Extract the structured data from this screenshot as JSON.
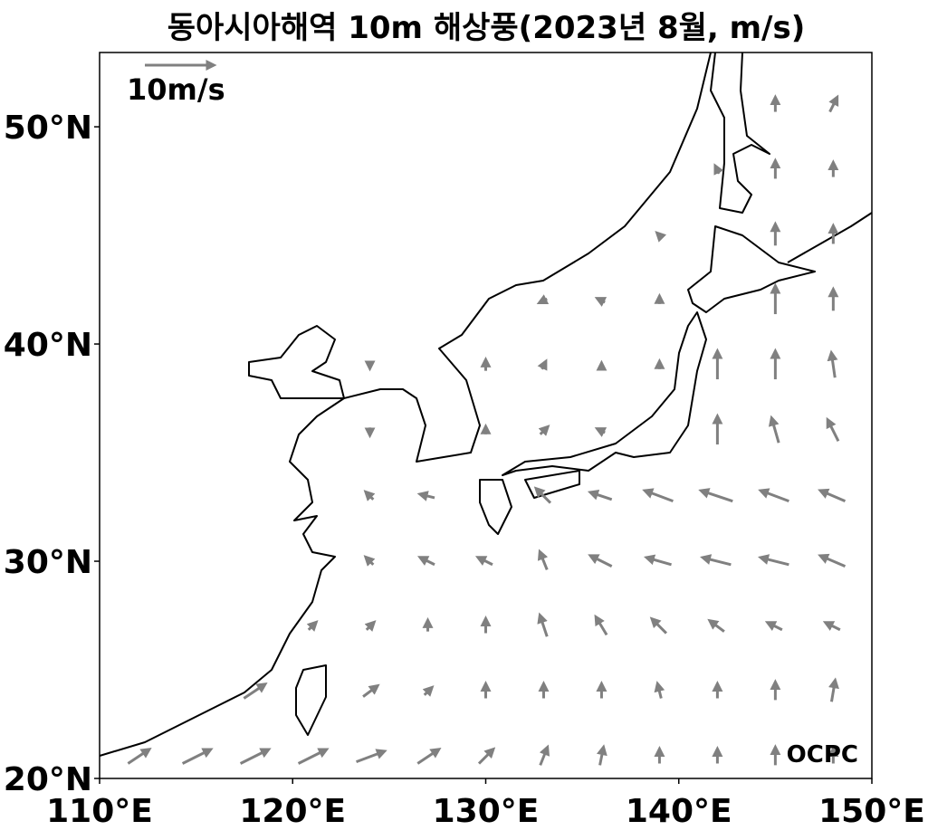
{
  "title": "동아시아해역 10m 해상풍(2023년 8월, m/s)",
  "map": {
    "xlim": [
      110,
      150
    ],
    "ylim": [
      20,
      53.42
    ],
    "xticks": [
      {
        "value": 110,
        "label": "110°E"
      },
      {
        "value": 120,
        "label": "120°E"
      },
      {
        "value": 130,
        "label": "130°E"
      },
      {
        "value": 140,
        "label": "140°E"
      },
      {
        "value": 150,
        "label": "150°E"
      }
    ],
    "yticks": [
      {
        "value": 20,
        "label": "20°N"
      },
      {
        "value": 30,
        "label": "30°N"
      },
      {
        "value": 40,
        "label": "40°N"
      },
      {
        "value": 50,
        "label": "50°N"
      }
    ],
    "arrow_color": "#808080"
  },
  "reference_arrow": {
    "value": 10,
    "label": "10m/s"
  },
  "credit": "OCPC",
  "wind": {
    "lons": [
      112,
      115,
      118,
      121,
      124,
      127,
      130,
      133,
      136,
      139,
      142,
      145,
      148
    ],
    "lats": [
      21,
      24,
      27,
      30,
      33,
      36,
      39,
      42,
      45,
      48,
      51
    ],
    "u": [
      [
        3,
        4,
        4,
        4,
        4,
        3,
        2,
        1,
        0.5,
        0,
        0,
        0,
        0
      ],
      [
        null,
        null,
        3,
        null,
        2,
        1,
        0,
        0,
        0,
        -0.5,
        0,
        0,
        0.5
      ],
      [
        null,
        null,
        null,
        1,
        1,
        0,
        0,
        -1,
        -1.5,
        -2,
        -2,
        -2,
        -2
      ],
      [
        null,
        null,
        null,
        null,
        -1,
        -2,
        -2,
        -1,
        -3,
        -3.5,
        -4,
        -4,
        -3.5
      ],
      [
        null,
        null,
        null,
        null,
        -1,
        -2,
        null,
        -2,
        -3,
        -4,
        -4.5,
        -4,
        -3.5
      ],
      [
        null,
        null,
        null,
        null,
        0,
        null,
        0,
        1,
        -1,
        null,
        0,
        -1,
        -1.5
      ],
      [
        null,
        null,
        null,
        null,
        0,
        null,
        0,
        0.5,
        0,
        0,
        0,
        0,
        -0.5
      ],
      [
        null,
        null,
        null,
        null,
        null,
        null,
        null,
        -1,
        -1,
        0,
        null,
        0,
        0
      ],
      [
        null,
        null,
        null,
        null,
        null,
        null,
        null,
        null,
        null,
        -0.5,
        null,
        0,
        0
      ],
      [
        null,
        null,
        null,
        null,
        null,
        null,
        null,
        null,
        null,
        null,
        -0.5,
        0,
        0
      ],
      [
        null,
        null,
        null,
        null,
        null,
        null,
        null,
        null,
        null,
        null,
        null,
        0,
        1
      ]
    ],
    "v": [
      [
        2,
        2,
        2,
        2,
        1.5,
        2,
        2,
        2.5,
        2.5,
        2,
        2,
        2.5,
        2
      ],
      [
        null,
        null,
        2,
        null,
        1.5,
        1,
        2,
        2,
        2,
        2,
        2,
        2.5,
        3
      ],
      [
        null,
        null,
        null,
        1,
        1,
        1.5,
        2,
        3,
        2.5,
        2,
        1.5,
        1,
        1
      ],
      [
        null,
        null,
        null,
        null,
        1,
        1,
        1,
        2.5,
        1.5,
        1,
        1,
        1,
        1.5
      ],
      [
        null,
        null,
        null,
        null,
        1,
        0.5,
        null,
        2,
        1,
        1.5,
        1.5,
        1.5,
        1.5
      ],
      [
        null,
        null,
        null,
        null,
        -1,
        null,
        1,
        1,
        0.5,
        null,
        4,
        3.5,
        3
      ],
      [
        null,
        null,
        null,
        null,
        -0.5,
        null,
        1.5,
        1,
        0.5,
        1,
        4,
        4,
        3.5
      ],
      [
        null,
        null,
        null,
        null,
        null,
        null,
        null,
        -0.5,
        0.5,
        1,
        null,
        4,
        3
      ],
      [
        null,
        null,
        null,
        null,
        null,
        null,
        null,
        null,
        null,
        0.5,
        null,
        3,
        2.5
      ],
      [
        null,
        null,
        null,
        null,
        null,
        null,
        null,
        null,
        null,
        null,
        1,
        2.5,
        2
      ],
      [
        null,
        null,
        null,
        null,
        null,
        null,
        null,
        null,
        null,
        null,
        null,
        2,
        2
      ]
    ]
  }
}
